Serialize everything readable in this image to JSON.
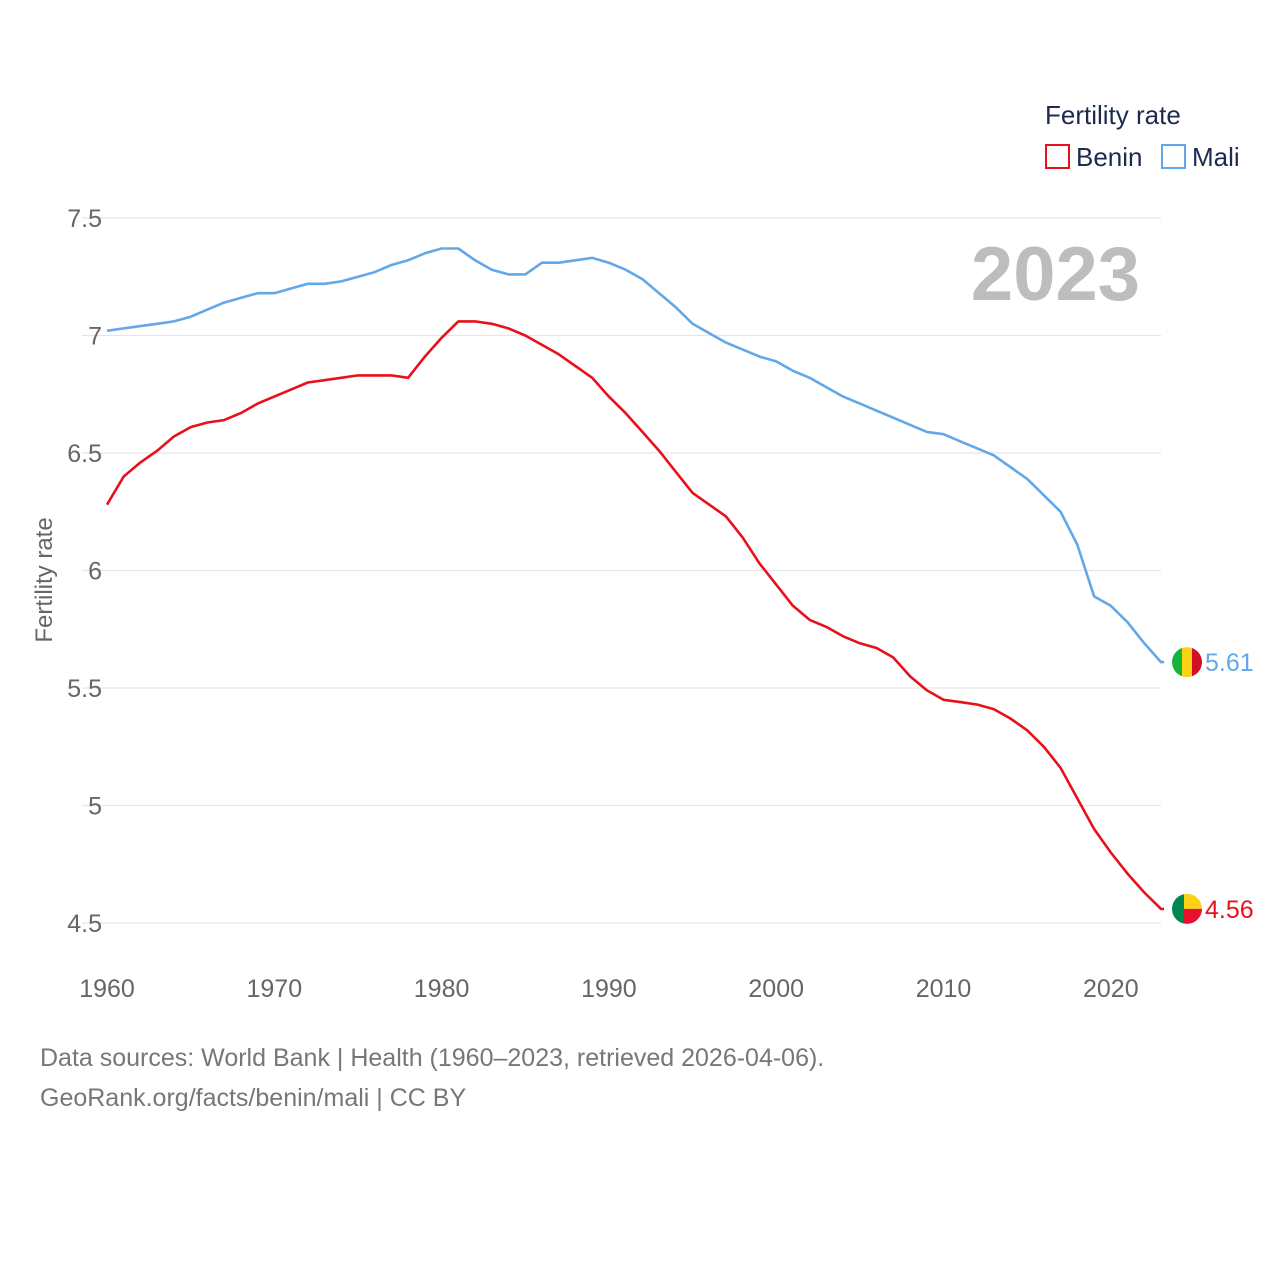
{
  "chart_data": {
    "type": "line",
    "current_year": "2023",
    "ylabel": "Fertility rate",
    "xlabel": "",
    "ylim": [
      4.3,
      7.55
    ],
    "xlim": [
      1960,
      2023
    ],
    "yticks": [
      4.5,
      5,
      5.5,
      6,
      6.5,
      7,
      7.5
    ],
    "ytick_labels": [
      "4.5",
      "5",
      "5.5",
      "6",
      "6.5",
      "7",
      "7.5"
    ],
    "xticks": [
      1960,
      1970,
      1980,
      1990,
      2000,
      2010,
      2020
    ],
    "xtick_labels": [
      "1960",
      "1970",
      "1980",
      "1990",
      "2000",
      "2010",
      "2020"
    ],
    "grid": true,
    "legend": {
      "title": "Fertility rate",
      "position": "top-right"
    },
    "series": [
      {
        "name": "Benin",
        "color": "#e8111b",
        "end_label": "4.56",
        "flag": "benin-flag",
        "x": [
          1960,
          1961,
          1962,
          1963,
          1964,
          1965,
          1966,
          1967,
          1968,
          1969,
          1970,
          1971,
          1972,
          1973,
          1974,
          1975,
          1976,
          1977,
          1978,
          1979,
          1980,
          1981,
          1982,
          1983,
          1984,
          1985,
          1986,
          1987,
          1988,
          1989,
          1990,
          1991,
          1992,
          1993,
          1994,
          1995,
          1996,
          1997,
          1998,
          1999,
          2000,
          2001,
          2002,
          2003,
          2004,
          2005,
          2006,
          2007,
          2008,
          2009,
          2010,
          2011,
          2012,
          2013,
          2014,
          2015,
          2016,
          2017,
          2018,
          2019,
          2020,
          2021,
          2022,
          2023
        ],
        "values": [
          6.28,
          6.4,
          6.46,
          6.51,
          6.57,
          6.61,
          6.63,
          6.64,
          6.67,
          6.71,
          6.74,
          6.77,
          6.8,
          6.81,
          6.82,
          6.83,
          6.83,
          6.83,
          6.82,
          6.91,
          6.99,
          7.06,
          7.06,
          7.05,
          7.03,
          7.0,
          6.96,
          6.92,
          6.87,
          6.82,
          6.74,
          6.67,
          6.59,
          6.51,
          6.42,
          6.33,
          6.28,
          6.23,
          6.14,
          6.03,
          5.94,
          5.85,
          5.79,
          5.76,
          5.72,
          5.69,
          5.67,
          5.63,
          5.55,
          5.49,
          5.45,
          5.44,
          5.43,
          5.41,
          5.37,
          5.32,
          5.25,
          5.16,
          5.03,
          4.9,
          4.8,
          4.71,
          4.63,
          4.56
        ]
      },
      {
        "name": "Mali",
        "color": "#62a8e8",
        "end_label": "5.61",
        "flag": "mali-flag",
        "x": [
          1960,
          1961,
          1962,
          1963,
          1964,
          1965,
          1966,
          1967,
          1968,
          1969,
          1970,
          1971,
          1972,
          1973,
          1974,
          1975,
          1976,
          1977,
          1978,
          1979,
          1980,
          1981,
          1982,
          1983,
          1984,
          1985,
          1986,
          1987,
          1988,
          1989,
          1990,
          1991,
          1992,
          1993,
          1994,
          1995,
          1996,
          1997,
          1998,
          1999,
          2000,
          2001,
          2002,
          2003,
          2004,
          2005,
          2006,
          2007,
          2008,
          2009,
          2010,
          2011,
          2012,
          2013,
          2014,
          2015,
          2016,
          2017,
          2018,
          2019,
          2020,
          2021,
          2022,
          2023
        ],
        "values": [
          7.02,
          7.03,
          7.04,
          7.05,
          7.06,
          7.08,
          7.11,
          7.14,
          7.16,
          7.18,
          7.18,
          7.2,
          7.22,
          7.22,
          7.23,
          7.25,
          7.27,
          7.3,
          7.32,
          7.35,
          7.37,
          7.37,
          7.32,
          7.28,
          7.26,
          7.26,
          7.31,
          7.31,
          7.32,
          7.33,
          7.31,
          7.28,
          7.24,
          7.18,
          7.12,
          7.05,
          7.01,
          6.97,
          6.94,
          6.91,
          6.89,
          6.85,
          6.82,
          6.78,
          6.74,
          6.71,
          6.68,
          6.65,
          6.62,
          6.59,
          6.58,
          6.55,
          6.52,
          6.49,
          6.44,
          6.39,
          6.32,
          6.25,
          6.11,
          5.89,
          5.85,
          5.78,
          5.69,
          5.61
        ]
      }
    ]
  },
  "footer": {
    "line1": "Data sources: World Bank | Health (1960–2023, retrieved 2026-04-06).",
    "line2": "GeoRank.org/facts/benin/mali | CC BY"
  },
  "colors": {
    "grid": "#e6e6e6",
    "axis_text": "#666666",
    "year_watermark": "#bdbdbd"
  }
}
